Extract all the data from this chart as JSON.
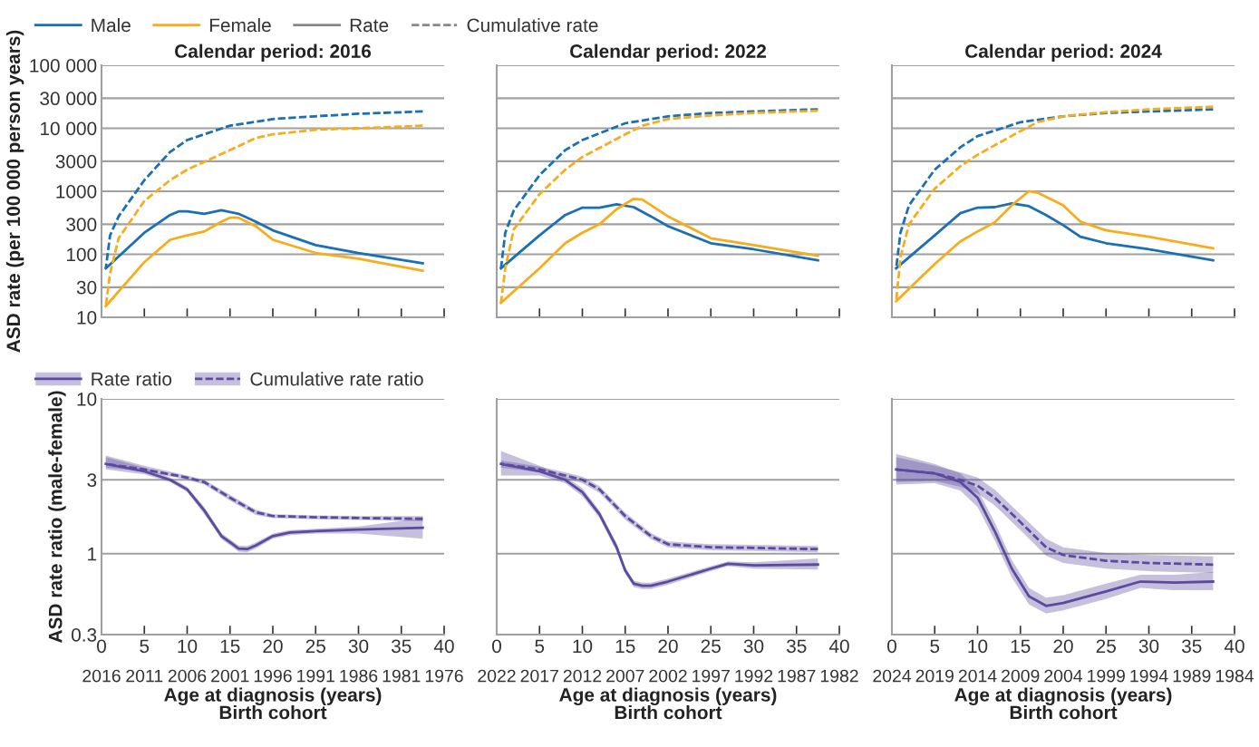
{
  "chart_data": [
    {
      "type": "line",
      "title": "Calendar period: 2016",
      "ylabel": "ASD rate (per 100 000 person years)",
      "log": "y",
      "grid": "y",
      "legend": "top left",
      "tick_labels": "y",
      "annotations": [
        "Rate",
        "Cumulative rate"
      ],
      "xlim": [
        0,
        40
      ],
      "xticks": [
        {
          "value": 0,
          "label": null
        },
        {
          "value": 5,
          "label": null
        },
        {
          "value": 10,
          "label": null
        },
        {
          "value": 15,
          "label": null
        },
        {
          "value": 20,
          "label": null
        },
        {
          "value": 25,
          "label": null
        },
        {
          "value": 30,
          "label": null
        },
        {
          "value": 35,
          "label": null
        },
        {
          "value": 40,
          "label": null
        }
      ],
      "ylim": [
        10,
        100000
      ],
      "yticks": [
        10,
        30,
        100,
        300,
        1000,
        3000,
        {
          "value": 10000,
          "label": "10 000"
        },
        {
          "value": 30000,
          "label": "30 000"
        },
        {
          "value": 100000,
          "label": "100 000"
        }
      ],
      "series": [
        {
          "name": "Male",
          "color": "#1a6fb5",
          "line_style": "solid",
          "x": [
            0.5,
            5,
            8,
            9,
            10,
            12,
            14,
            16,
            18,
            20,
            25,
            30,
            37.5
          ],
          "values": [
            60,
            220,
            420,
            480,
            480,
            440,
            500,
            440,
            330,
            240,
            140,
            105,
            72
          ]
        },
        {
          "name": "Female",
          "color": "#f7ad1a",
          "line_style": "solid",
          "x": [
            0.5,
            5,
            8,
            10,
            12,
            14,
            15,
            16,
            18,
            20,
            25,
            30,
            37.5
          ],
          "values": [
            15,
            75,
            170,
            200,
            230,
            330,
            380,
            380,
            280,
            170,
            105,
            85,
            55
          ]
        },
        {
          "color": "#1a6fb5",
          "line_style": "dashed",
          "x": [
            0.5,
            1,
            2,
            5,
            8,
            10,
            15,
            20,
            25,
            30,
            37.5
          ],
          "values": [
            60,
            200,
            400,
            1500,
            4200,
            6500,
            11000,
            14000,
            15500,
            17000,
            18500
          ]
        },
        {
          "color": "#f7ad1a",
          "line_style": "dashed",
          "x": [
            0.5,
            1,
            2,
            5,
            8,
            10,
            15,
            18,
            20,
            25,
            30,
            37.5
          ],
          "values": [
            15,
            50,
            180,
            700,
            1500,
            2200,
            4500,
            7000,
            8000,
            9500,
            10000,
            11000
          ]
        }
      ]
    },
    {
      "type": "line",
      "title": "Calendar period: 2022",
      "log": "y",
      "grid": "y",
      "tick_labels": false,
      "xlim": [
        0,
        40
      ],
      "xticks": [
        {
          "value": 0,
          "label": null
        },
        {
          "value": 5,
          "label": null
        },
        {
          "value": 10,
          "label": null
        },
        {
          "value": 15,
          "label": null
        },
        {
          "value": 20,
          "label": null
        },
        {
          "value": 25,
          "label": null
        },
        {
          "value": 30,
          "label": null
        },
        {
          "value": 35,
          "label": null
        },
        {
          "value": 40,
          "label": null
        }
      ],
      "ylim": [
        10,
        100000
      ],
      "yticks": [
        {
          "value": 10,
          "label": null
        },
        {
          "value": 30,
          "label": null
        },
        {
          "value": 100,
          "label": null
        },
        {
          "value": 300,
          "label": null
        },
        {
          "value": 1000,
          "label": null
        },
        {
          "value": 3000,
          "label": null
        },
        {
          "value": 10000,
          "label": null
        },
        {
          "value": 30000,
          "label": null
        },
        {
          "value": 100000,
          "label": null
        }
      ],
      "series": [
        {
          "color": "#1a6fb5",
          "line_style": "solid",
          "x": [
            0.5,
            5,
            8,
            10,
            12,
            14,
            16,
            18,
            20,
            25,
            30,
            37.5
          ],
          "values": [
            60,
            200,
            420,
            550,
            550,
            620,
            560,
            400,
            280,
            150,
            120,
            80
          ]
        },
        {
          "color": "#f7ad1a",
          "line_style": "solid",
          "x": [
            0.5,
            5,
            8,
            10,
            12,
            14,
            16,
            17,
            20,
            25,
            30,
            37.5
          ],
          "values": [
            17,
            60,
            150,
            220,
            300,
            520,
            760,
            740,
            400,
            180,
            140,
            95
          ]
        },
        {
          "color": "#1a6fb5",
          "line_style": "dashed",
          "x": [
            0.5,
            1,
            2,
            5,
            8,
            10,
            15,
            20,
            25,
            30,
            37.5
          ],
          "values": [
            60,
            220,
            500,
            1800,
            4500,
            6500,
            12000,
            15500,
            17500,
            18500,
            20000
          ]
        },
        {
          "color": "#f7ad1a",
          "line_style": "dashed",
          "x": [
            0.5,
            1,
            2,
            5,
            8,
            10,
            15,
            17,
            20,
            25,
            30,
            37.5
          ],
          "values": [
            17,
            60,
            250,
            900,
            2200,
            3500,
            8000,
            11000,
            14000,
            16000,
            17500,
            19000
          ]
        }
      ]
    },
    {
      "type": "line",
      "title": "Calendar period: 2024",
      "log": "y",
      "grid": "y",
      "tick_labels": false,
      "xlim": [
        0,
        40
      ],
      "xticks": [
        {
          "value": 0,
          "label": null
        },
        {
          "value": 5,
          "label": null
        },
        {
          "value": 10,
          "label": null
        },
        {
          "value": 15,
          "label": null
        },
        {
          "value": 20,
          "label": null
        },
        {
          "value": 25,
          "label": null
        },
        {
          "value": 30,
          "label": null
        },
        {
          "value": 35,
          "label": null
        },
        {
          "value": 40,
          "label": null
        }
      ],
      "ylim": [
        10,
        100000
      ],
      "yticks": [
        {
          "value": 10,
          "label": null
        },
        {
          "value": 30,
          "label": null
        },
        {
          "value": 100,
          "label": null
        },
        {
          "value": 300,
          "label": null
        },
        {
          "value": 1000,
          "label": null
        },
        {
          "value": 3000,
          "label": null
        },
        {
          "value": 10000,
          "label": null
        },
        {
          "value": 30000,
          "label": null
        },
        {
          "value": 100000,
          "label": null
        }
      ],
      "series": [
        {
          "color": "#1a6fb5",
          "line_style": "solid",
          "x": [
            0.5,
            5,
            8,
            10,
            12,
            14,
            16,
            18,
            20,
            22,
            25,
            30,
            37.5
          ],
          "values": [
            60,
            200,
            450,
            550,
            560,
            640,
            580,
            420,
            290,
            190,
            150,
            120,
            80
          ]
        },
        {
          "color": "#f7ad1a",
          "line_style": "solid",
          "x": [
            0.5,
            5,
            8,
            10,
            12,
            14,
            16,
            17,
            20,
            22,
            25,
            30,
            37.5
          ],
          "values": [
            18,
            70,
            160,
            230,
            320,
            600,
            1000,
            950,
            600,
            330,
            240,
            190,
            125
          ]
        },
        {
          "color": "#1a6fb5",
          "line_style": "dashed",
          "x": [
            0.5,
            1,
            2,
            5,
            8,
            10,
            15,
            20,
            25,
            30,
            37.5
          ],
          "values": [
            60,
            220,
            600,
            2200,
            5000,
            7500,
            12500,
            15500,
            17500,
            18500,
            20000
          ]
        },
        {
          "color": "#f7ad1a",
          "line_style": "dashed",
          "x": [
            0.5,
            1,
            2,
            5,
            8,
            10,
            15,
            17,
            20,
            25,
            30,
            37.5
          ],
          "values": [
            18,
            90,
            300,
            1100,
            2500,
            3800,
            9000,
            12500,
            15500,
            18000,
            20000,
            22000
          ]
        }
      ]
    },
    {
      "type": "line",
      "ylabel": "ASD rate ratio (male-female)",
      "xlabel": "Age at diagnosis (years)",
      "x2label": "Birth cohort",
      "log": "y",
      "grid": "y",
      "legend": "top left",
      "xlim": [
        0,
        40
      ],
      "xticks": [
        0,
        5,
        10,
        15,
        20,
        25,
        30,
        35,
        40
      ],
      "x2lim": [
        2016,
        1976
      ],
      "x2ticks": [
        2016,
        2011,
        2006,
        2001,
        1996,
        1991,
        1986,
        1981,
        1976
      ],
      "ylim": [
        0.3,
        10
      ],
      "yticks": [
        0.3,
        1,
        3,
        10
      ],
      "series": [
        {
          "name": "Rate ratio",
          "color": "#5b4a9e",
          "line_style": "solid",
          "x": [
            0.5,
            5,
            8,
            10,
            12,
            14,
            16,
            17,
            18,
            20,
            22,
            25,
            30,
            37.5
          ],
          "values": [
            3.8,
            3.4,
            3.0,
            2.6,
            1.9,
            1.3,
            1.08,
            1.07,
            1.13,
            1.3,
            1.37,
            1.4,
            1.43,
            1.47
          ],
          "lower": [
            3.5,
            3.25,
            2.9,
            2.5,
            1.8,
            1.24,
            1.03,
            1.02,
            1.08,
            1.25,
            1.32,
            1.35,
            1.35,
            1.25
          ],
          "upper": [
            4.2,
            3.6,
            3.1,
            2.7,
            2.0,
            1.36,
            1.13,
            1.12,
            1.18,
            1.35,
            1.42,
            1.45,
            1.5,
            1.7
          ]
        },
        {
          "name": "Cumulative rate ratio",
          "color": "#5b4a9e",
          "line_style": "dashed",
          "x": [
            0.5,
            5,
            10,
            12,
            15,
            18,
            20,
            25,
            30,
            37.5
          ],
          "values": [
            3.8,
            3.5,
            3.1,
            2.9,
            2.3,
            1.85,
            1.75,
            1.72,
            1.7,
            1.68
          ],
          "lower": [
            3.6,
            3.4,
            3.0,
            2.8,
            2.2,
            1.78,
            1.7,
            1.67,
            1.65,
            1.62
          ],
          "upper": [
            4.3,
            3.7,
            3.2,
            3.0,
            2.4,
            1.92,
            1.8,
            1.77,
            1.75,
            1.75
          ]
        }
      ]
    },
    {
      "type": "line",
      "xlabel": "Age at diagnosis (years)",
      "x2label": "Birth cohort",
      "log": "y",
      "grid": "y",
      "tick_labels": "x",
      "xlim": [
        0,
        40
      ],
      "xticks": [
        0,
        5,
        10,
        15,
        20,
        25,
        30,
        35,
        40
      ],
      "x2lim": [
        2022,
        1982
      ],
      "x2ticks": [
        2022,
        2017,
        2012,
        2007,
        2002,
        1997,
        1992,
        1987,
        1982
      ],
      "ylim": [
        0.3,
        10
      ],
      "yticks": [
        {
          "value": 0.3,
          "label": null
        },
        {
          "value": 1,
          "label": null
        },
        {
          "value": 3,
          "label": null
        },
        {
          "value": 10,
          "label": null
        }
      ],
      "series": [
        {
          "color": "#5b4a9e",
          "line_style": "solid",
          "x": [
            0.5,
            5,
            8,
            10,
            12,
            14,
            15,
            16,
            17,
            18,
            20,
            25,
            27,
            30,
            37.5
          ],
          "values": [
            3.8,
            3.4,
            3.0,
            2.5,
            1.8,
            1.1,
            0.78,
            0.64,
            0.62,
            0.62,
            0.66,
            0.8,
            0.86,
            0.84,
            0.85
          ],
          "lower": [
            3.2,
            3.2,
            2.85,
            2.35,
            1.7,
            1.03,
            0.74,
            0.61,
            0.59,
            0.59,
            0.63,
            0.77,
            0.83,
            0.8,
            0.79
          ],
          "upper": [
            4.6,
            3.7,
            3.15,
            2.65,
            1.9,
            1.17,
            0.82,
            0.67,
            0.65,
            0.65,
            0.69,
            0.83,
            0.89,
            0.88,
            0.93
          ]
        },
        {
          "color": "#5b4a9e",
          "line_style": "dashed",
          "x": [
            0.5,
            5,
            8,
            10,
            12,
            15,
            18,
            20,
            25,
            30,
            37.5
          ],
          "values": [
            3.8,
            3.5,
            3.2,
            3.0,
            2.6,
            1.75,
            1.3,
            1.15,
            1.1,
            1.09,
            1.07
          ],
          "lower": [
            3.6,
            3.35,
            3.05,
            2.85,
            2.47,
            1.66,
            1.24,
            1.1,
            1.05,
            1.04,
            1.02
          ],
          "upper": [
            4.0,
            3.65,
            3.35,
            3.15,
            2.73,
            1.84,
            1.36,
            1.2,
            1.15,
            1.14,
            1.12
          ]
        }
      ]
    },
    {
      "type": "line",
      "xlabel": "Age at diagnosis (years)",
      "x2label": "Birth cohort",
      "log": "y",
      "grid": "y",
      "tick_labels": "x",
      "xlim": [
        0,
        40
      ],
      "xticks": [
        0,
        5,
        10,
        15,
        20,
        25,
        30,
        35,
        40
      ],
      "x2lim": [
        2024,
        1984
      ],
      "x2ticks": [
        2024,
        2019,
        2014,
        2009,
        2004,
        1999,
        1994,
        1989,
        1984
      ],
      "ylim": [
        0.3,
        10
      ],
      "yticks": [
        {
          "value": 0.3,
          "label": null
        },
        {
          "value": 1,
          "label": null
        },
        {
          "value": 3,
          "label": null
        },
        {
          "value": 10,
          "label": null
        }
      ],
      "series": [
        {
          "color": "#5b4a9e",
          "line_style": "solid",
          "x": [
            0.5,
            5,
            8,
            10,
            12,
            14,
            16,
            18,
            20,
            25,
            29,
            33,
            37.5
          ],
          "values": [
            3.5,
            3.3,
            2.9,
            2.3,
            1.4,
            0.8,
            0.53,
            0.46,
            0.48,
            0.57,
            0.66,
            0.65,
            0.66
          ],
          "lower": [
            2.8,
            2.85,
            2.55,
            2.0,
            1.22,
            0.7,
            0.47,
            0.41,
            0.43,
            0.51,
            0.6,
            0.58,
            0.58
          ],
          "upper": [
            4.4,
            3.8,
            3.3,
            2.6,
            1.6,
            0.91,
            0.6,
            0.52,
            0.54,
            0.64,
            0.73,
            0.73,
            0.76
          ]
        },
        {
          "color": "#5b4a9e",
          "line_style": "dashed",
          "x": [
            0.5,
            5,
            8,
            10,
            12,
            15,
            18,
            20,
            25,
            30,
            37.5
          ],
          "values": [
            3.5,
            3.3,
            3.0,
            2.75,
            2.3,
            1.6,
            1.1,
            0.98,
            0.9,
            0.87,
            0.85
          ],
          "lower": [
            2.9,
            2.95,
            2.7,
            2.45,
            2.05,
            1.42,
            0.97,
            0.87,
            0.8,
            0.77,
            0.75
          ],
          "upper": [
            4.2,
            3.7,
            3.35,
            3.1,
            2.6,
            1.8,
            1.25,
            1.1,
            1.01,
            0.98,
            0.96
          ]
        }
      ]
    }
  ]
}
